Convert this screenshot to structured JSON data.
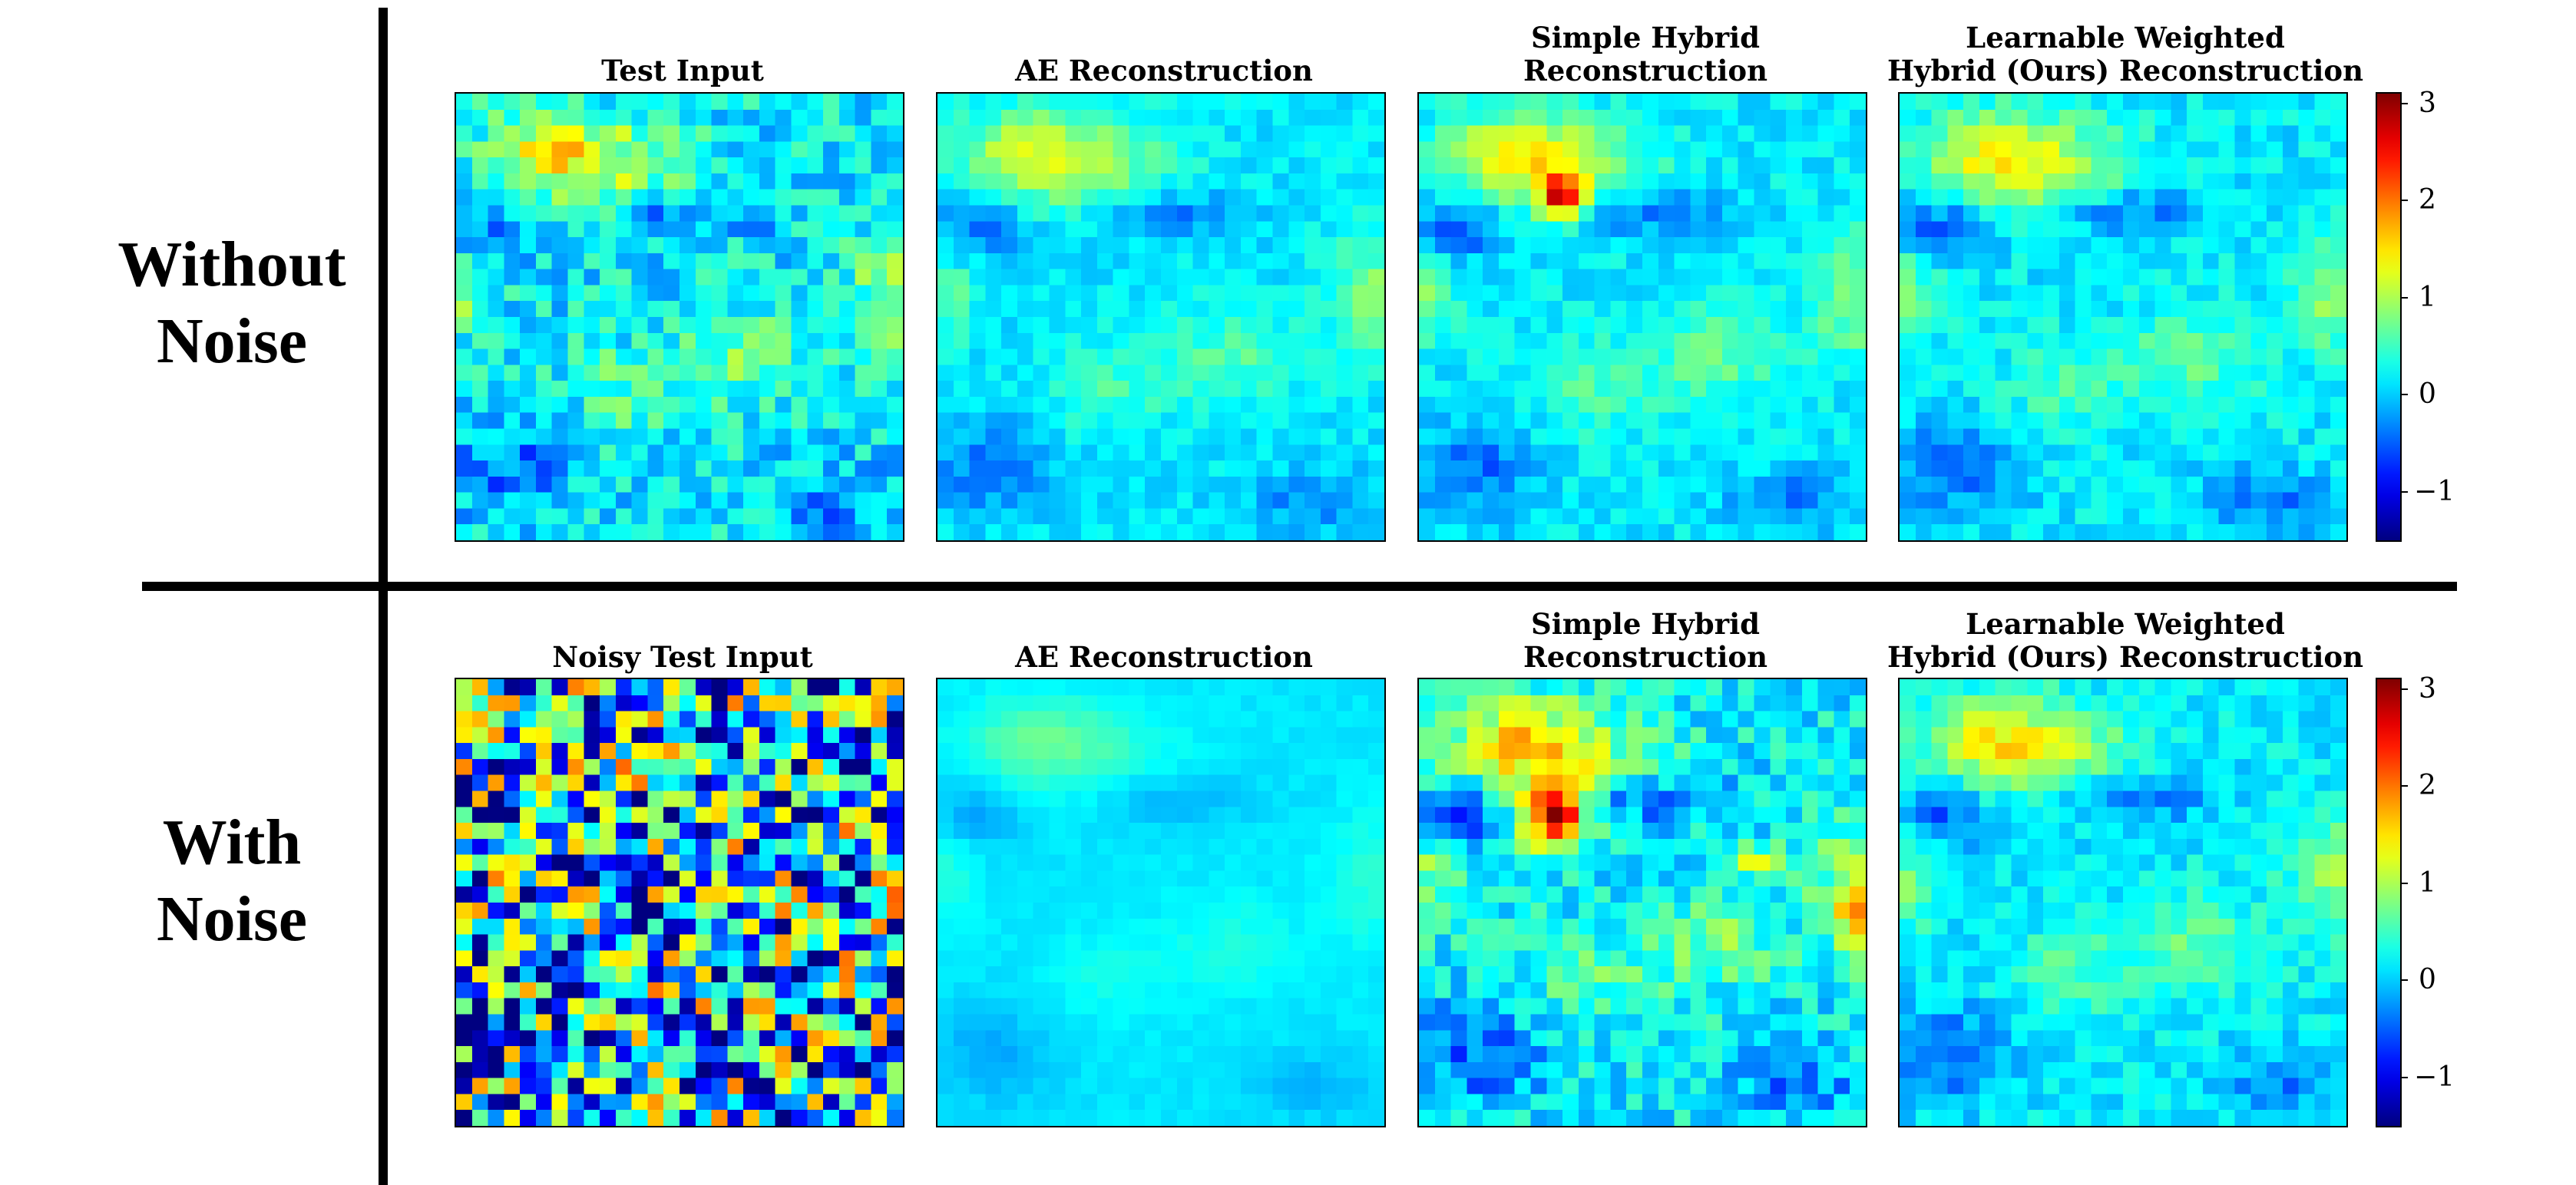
{
  "rows": [
    {
      "label_line1": "Without",
      "label_line2": "Noise"
    },
    {
      "label_line1": "With",
      "label_line2": "Noise"
    }
  ],
  "panels": [
    [
      {
        "title_line1": "",
        "title_line2": "Test Input"
      },
      {
        "title_line1": "",
        "title_line2": "AE Reconstruction"
      },
      {
        "title_line1": "Simple Hybrid",
        "title_line2": "Reconstruction"
      },
      {
        "title_line1": "Learnable Weighted",
        "title_line2": "Hybrid (Ours) Reconstruction"
      }
    ],
    [
      {
        "title_line1": "",
        "title_line2": "Noisy Test Input"
      },
      {
        "title_line1": "",
        "title_line2": "AE Reconstruction"
      },
      {
        "title_line1": "Simple Hybrid",
        "title_line2": "Reconstruction"
      },
      {
        "title_line1": "Learnable Weighted",
        "title_line2": "Hybrid (Ours) Reconstruction"
      }
    ]
  ],
  "colorbar": {
    "colormap": "jet",
    "ticks": [
      "3",
      "2",
      "1",
      "0",
      "−1"
    ]
  },
  "chart_data": {
    "type": "heatmap",
    "grid_size": [
      28,
      28
    ],
    "value_range": [
      -1.5,
      3.1
    ],
    "colorbar_ticks": [
      -1,
      0,
      1,
      2,
      3
    ],
    "colormap": "jet",
    "panels": [
      {
        "row": "Without Noise",
        "title": "Test Input"
      },
      {
        "row": "Without Noise",
        "title": "AE Reconstruction"
      },
      {
        "row": "Without Noise",
        "title": "Simple Hybrid Reconstruction"
      },
      {
        "row": "Without Noise",
        "title": "Learnable Weighted Hybrid (Ours) Reconstruction"
      },
      {
        "row": "With Noise",
        "title": "Noisy Test Input"
      },
      {
        "row": "With Noise",
        "title": "AE Reconstruction"
      },
      {
        "row": "With Noise",
        "title": "Simple Hybrid Reconstruction"
      },
      {
        "row": "With Noise",
        "title": "Learnable Weighted Hybrid (Ours) Reconstruction"
      }
    ]
  }
}
